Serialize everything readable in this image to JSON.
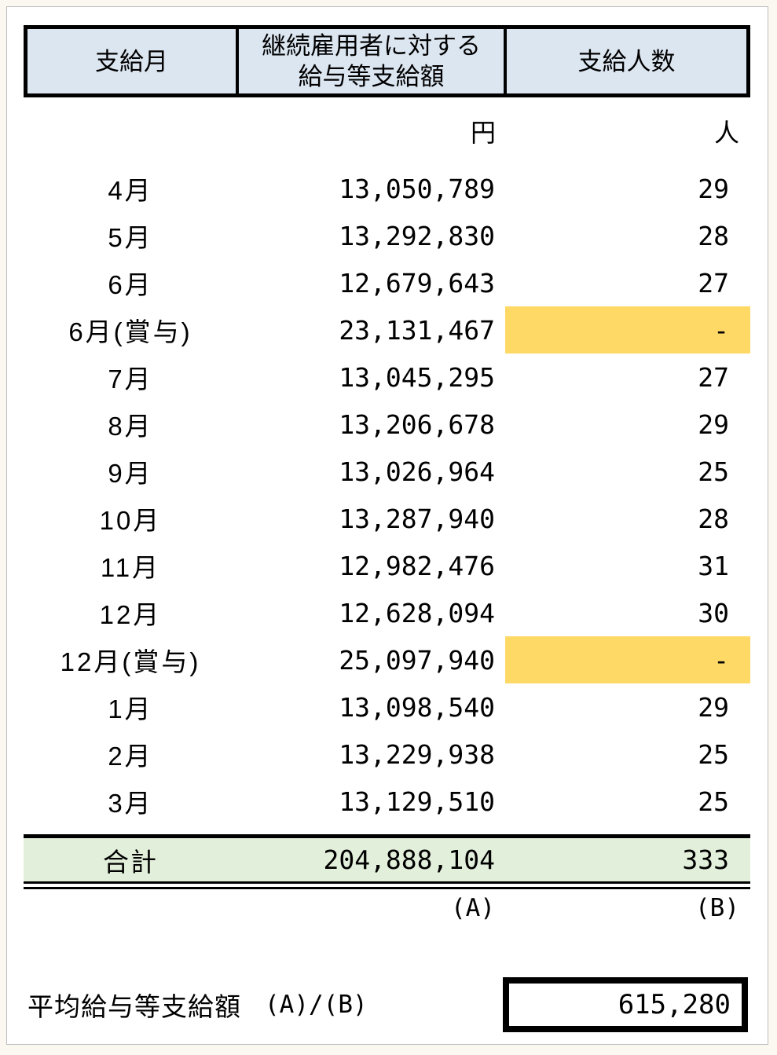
{
  "table": {
    "header": {
      "col_month": "支給月",
      "col_amount_line1": "継続雇用者に対する",
      "col_amount_line2": "給与等支給額",
      "col_count": "支給人数"
    },
    "units": {
      "amount": "円",
      "count": "人"
    },
    "rows": [
      {
        "month": "4月",
        "amount": "13,050,789",
        "count": "29",
        "highlight": false
      },
      {
        "month": "5月",
        "amount": "13,292,830",
        "count": "28",
        "highlight": false
      },
      {
        "month": "6月",
        "amount": "12,679,643",
        "count": "27",
        "highlight": false
      },
      {
        "month": "6月(賞与)",
        "amount": "23,131,467",
        "count": "-",
        "highlight": true
      },
      {
        "month": "7月",
        "amount": "13,045,295",
        "count": "27",
        "highlight": false
      },
      {
        "month": "8月",
        "amount": "13,206,678",
        "count": "29",
        "highlight": false
      },
      {
        "month": "9月",
        "amount": "13,026,964",
        "count": "25",
        "highlight": false
      },
      {
        "month": "10月",
        "amount": "13,287,940",
        "count": "28",
        "highlight": false
      },
      {
        "month": "11月",
        "amount": "12,982,476",
        "count": "31",
        "highlight": false
      },
      {
        "month": "12月",
        "amount": "12,628,094",
        "count": "30",
        "highlight": false
      },
      {
        "month": "12月(賞与)",
        "amount": "25,097,940",
        "count": "-",
        "highlight": true
      },
      {
        "month": "1月",
        "amount": "13,098,540",
        "count": "29",
        "highlight": false
      },
      {
        "month": "2月",
        "amount": "13,229,938",
        "count": "25",
        "highlight": false
      },
      {
        "month": "3月",
        "amount": "13,129,510",
        "count": "25",
        "highlight": false
      }
    ],
    "total": {
      "label": "合計",
      "amount": "204,888,104",
      "count": "333"
    },
    "refs": {
      "amount": "(A)",
      "count": "(B)"
    }
  },
  "summary": {
    "label": "平均給与等支給額",
    "formula": "(A)/(B)",
    "value": "615,280"
  },
  "colors": {
    "page_bg": "#faf8f0",
    "header_bg": "#dce6f1",
    "highlight_bg": "#ffd966",
    "total_bg": "#e2efda",
    "border": "#000000"
  }
}
